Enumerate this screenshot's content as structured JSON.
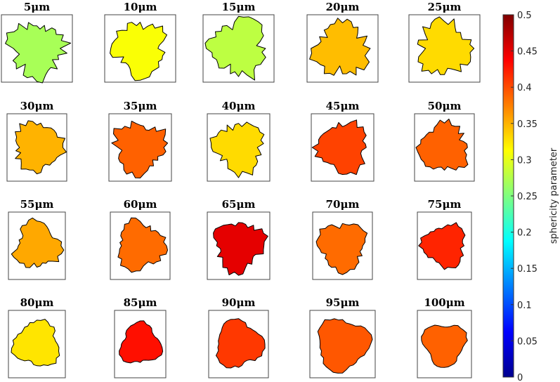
{
  "chart_data": {
    "type": "heatmap",
    "colorbar": {
      "label": "sphericity parameter",
      "min": 0,
      "max": 0.5,
      "colormap": "jet",
      "ticks": [
        "0",
        "0.05",
        "0.1",
        "0.15",
        "0.2",
        "0.25",
        "0.3",
        "0.35",
        "0.4",
        "0.45",
        "0.5"
      ]
    },
    "panels": [
      {
        "title": "5μm",
        "value": 0.27
      },
      {
        "title": "10μm",
        "value": 0.31
      },
      {
        "title": "15μm",
        "value": 0.28
      },
      {
        "title": "20μm",
        "value": 0.345
      },
      {
        "title": "25μm",
        "value": 0.33
      },
      {
        "title": "30μm",
        "value": 0.35
      },
      {
        "title": "35μm",
        "value": 0.39
      },
      {
        "title": "40μm",
        "value": 0.33
      },
      {
        "title": "45μm",
        "value": 0.405
      },
      {
        "title": "50μm",
        "value": 0.39
      },
      {
        "title": "55μm",
        "value": 0.355
      },
      {
        "title": "60μm",
        "value": 0.385
      },
      {
        "title": "65μm",
        "value": 0.45
      },
      {
        "title": "70μm",
        "value": 0.385
      },
      {
        "title": "75μm",
        "value": 0.42
      },
      {
        "title": "80μm",
        "value": 0.325
      },
      {
        "title": "85μm",
        "value": 0.43
      },
      {
        "title": "90μm",
        "value": 0.41
      },
      {
        "title": "95μm",
        "value": 0.395
      },
      {
        "title": "100μm",
        "value": 0.39
      }
    ]
  }
}
